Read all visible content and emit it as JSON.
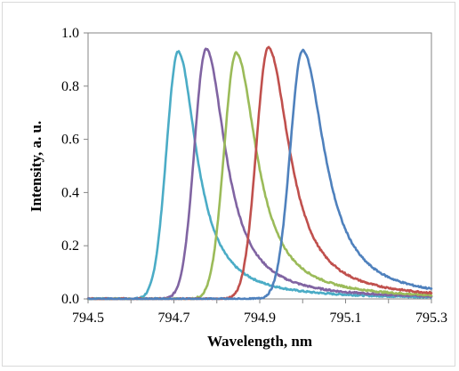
{
  "chart_data": {
    "type": "line",
    "title": "",
    "xlabel": "Wavelength, nm",
    "ylabel": "Intensity, a. u.",
    "xlim": [
      794.5,
      795.3
    ],
    "ylim": [
      0.0,
      1.0
    ],
    "x_ticks": [
      "794.5",
      "794.7",
      "794.9",
      "795.1",
      "795.3"
    ],
    "y_ticks": [
      "0.0",
      "0.2",
      "0.4",
      "0.6",
      "0.8",
      "1.0"
    ],
    "grid": "none",
    "legend": "none",
    "series": [
      {
        "color": "#4bacc6",
        "peak_x": 794.71,
        "peak_y": 0.93,
        "hwhm_left": 0.032,
        "hwhm_right": 0.052
      },
      {
        "color": "#8064a2",
        "peak_x": 794.775,
        "peak_y": 0.94,
        "hwhm_left": 0.032,
        "hwhm_right": 0.055
      },
      {
        "color": "#9bbb59",
        "peak_x": 794.845,
        "peak_y": 0.925,
        "hwhm_left": 0.033,
        "hwhm_right": 0.058
      },
      {
        "color": "#c0504d",
        "peak_x": 794.92,
        "peak_y": 0.945,
        "hwhm_left": 0.033,
        "hwhm_right": 0.06
      },
      {
        "color": "#4f81bd",
        "peak_x": 795.0,
        "peak_y": 0.935,
        "hwhm_left": 0.034,
        "hwhm_right": 0.062
      }
    ]
  }
}
